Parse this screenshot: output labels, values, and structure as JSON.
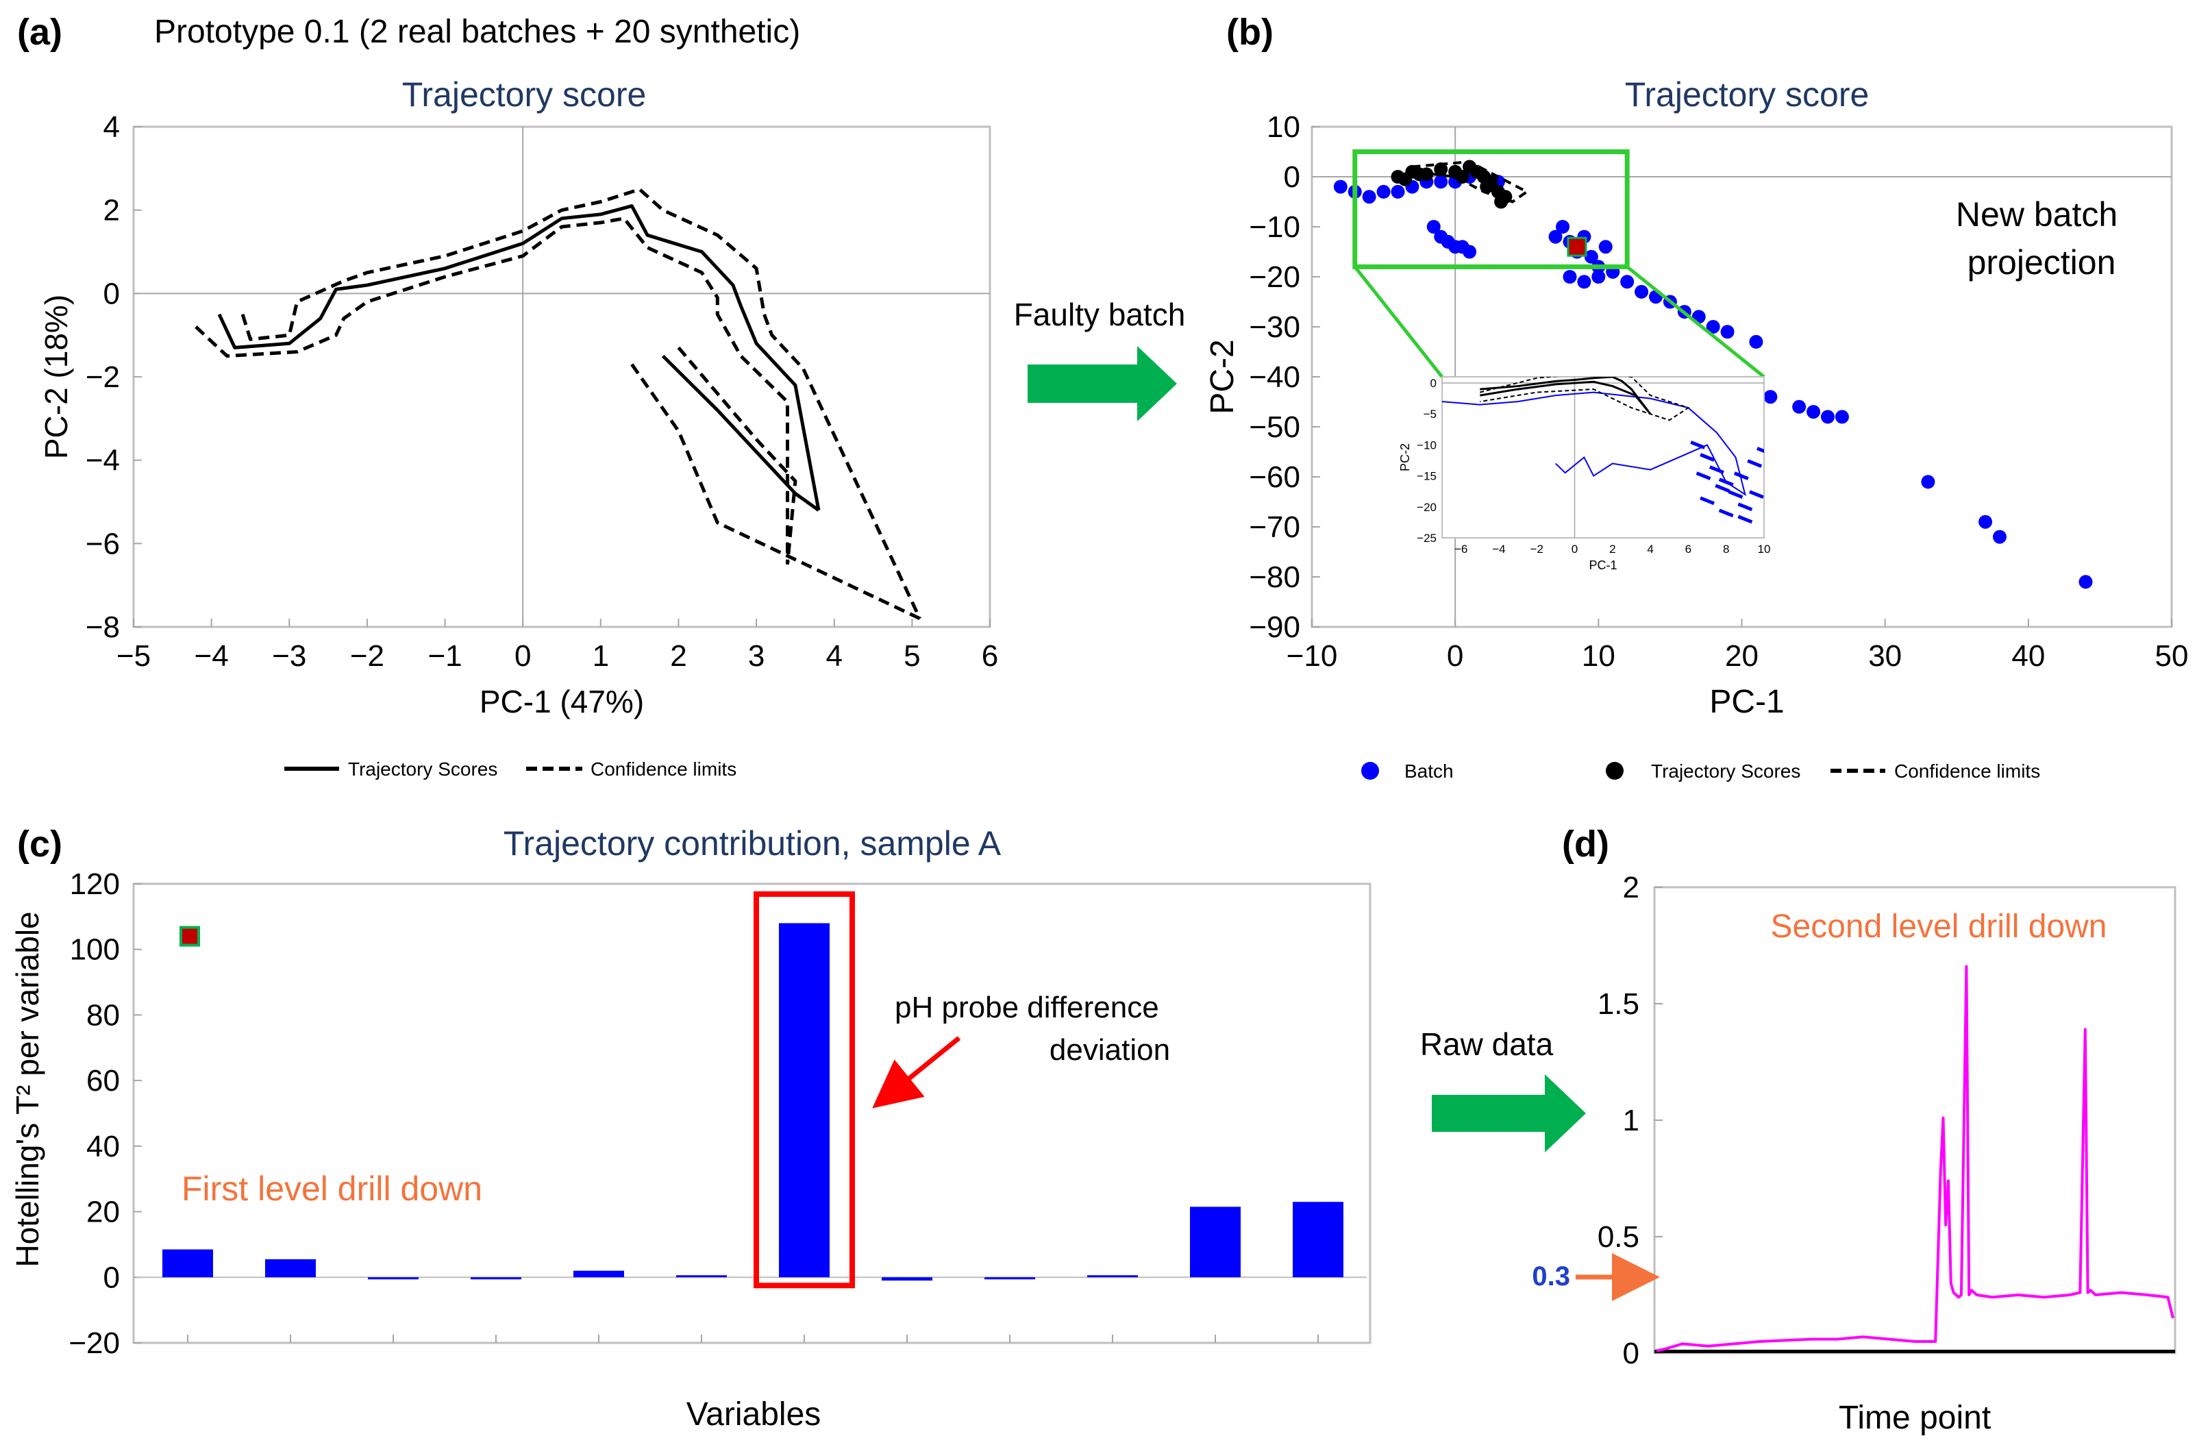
{
  "figure": {
    "panel_letters": [
      "(a)",
      "(b)",
      "(c)",
      "(d)"
    ],
    "prototype_label": "Prototype 0.1 (2 real batches + 20 synthetic)",
    "arrows": {
      "a_to_b": "Faulty batch",
      "c_to_d": "Raw data"
    },
    "legends": {
      "a": [
        {
          "label": "Trajectory Scores",
          "style": "solid"
        },
        {
          "label": "Confidence limits",
          "style": "dashed"
        }
      ],
      "b": [
        {
          "label": "Batch",
          "style": "dot-blue"
        },
        {
          "label": "Trajectory Scores",
          "style": "dot-black"
        },
        {
          "label": "Confidence limits",
          "style": "dashed"
        }
      ]
    },
    "colors": {
      "title": "#1f3864",
      "batch_blue": "#0000ff",
      "green_arrow": "#00b050",
      "box_green": "#33cc33",
      "highlight_red": "#ff0000",
      "annotation_orange": "#f4733c",
      "raw_magenta": "#ff00ff",
      "marker_red": "#c00000"
    }
  },
  "chart_data": [
    {
      "panel": "(a)",
      "type": "line",
      "title": "Trajectory score",
      "xlabel": "PC-1 (47%)",
      "ylabel": "PC-2 (18%)",
      "xlim": [
        -5,
        6
      ],
      "ylim": [
        -8,
        4
      ],
      "xticks": [
        -5,
        -4,
        -3,
        -2,
        -1,
        0,
        1,
        2,
        3,
        4,
        5,
        6
      ],
      "yticks": [
        -8,
        -6,
        -4,
        -2,
        0,
        2,
        4
      ],
      "grid": false,
      "series": [
        {
          "name": "Trajectory Scores",
          "style": "solid",
          "points": [
            [
              -3.9,
              -0.5
            ],
            [
              -3.7,
              -1.3
            ],
            [
              -3.0,
              -1.2
            ],
            [
              -2.6,
              -0.6
            ],
            [
              -2.4,
              0.1
            ],
            [
              -2.0,
              0.2
            ],
            [
              -1.0,
              0.6
            ],
            [
              0.0,
              1.2
            ],
            [
              0.5,
              1.8
            ],
            [
              1.0,
              1.9
            ],
            [
              1.4,
              2.1
            ],
            [
              1.6,
              1.4
            ],
            [
              2.3,
              1.0
            ],
            [
              2.7,
              0.2
            ],
            [
              2.8,
              -0.3
            ],
            [
              3.0,
              -1.2
            ],
            [
              3.5,
              -2.2
            ],
            [
              3.8,
              -5.2
            ]
          ]
        },
        {
          "name": "Trajectory Scores",
          "style": "solid",
          "points": [
            [
              1.8,
              -1.5
            ],
            [
              2.5,
              -2.8
            ],
            [
              3.5,
              -4.8
            ],
            [
              3.8,
              -5.2
            ]
          ]
        },
        {
          "name": "Confidence limits",
          "style": "dashed",
          "points": [
            [
              -4.2,
              -0.8
            ],
            [
              -3.8,
              -1.5
            ],
            [
              -2.9,
              -1.4
            ],
            [
              -2.4,
              -1.0
            ],
            [
              -2.3,
              -0.6
            ],
            [
              -2.0,
              -0.2
            ],
            [
              -1.0,
              0.4
            ],
            [
              0.0,
              0.9
            ],
            [
              0.5,
              1.6
            ],
            [
              1.0,
              1.7
            ],
            [
              1.3,
              1.8
            ],
            [
              1.6,
              1.1
            ],
            [
              2.3,
              0.5
            ],
            [
              2.5,
              -0.1
            ],
            [
              2.5,
              -0.5
            ],
            [
              2.8,
              -1.5
            ],
            [
              3.4,
              -2.6
            ],
            [
              3.4,
              -6.5
            ]
          ]
        },
        {
          "name": "Confidence limits",
          "style": "dashed",
          "points": [
            [
              -3.6,
              -0.5
            ],
            [
              -3.5,
              -1.1
            ],
            [
              -3.0,
              -1.0
            ],
            [
              -2.9,
              -0.2
            ],
            [
              -2.3,
              0.3
            ],
            [
              -2.0,
              0.5
            ],
            [
              -1.0,
              0.9
            ],
            [
              0.0,
              1.5
            ],
            [
              0.5,
              2.0
            ],
            [
              1.0,
              2.2
            ],
            [
              1.5,
              2.5
            ],
            [
              1.8,
              2.0
            ],
            [
              2.5,
              1.4
            ],
            [
              3.0,
              0.6
            ],
            [
              3.1,
              -0.5
            ],
            [
              3.2,
              -1.0
            ],
            [
              3.6,
              -1.8
            ],
            [
              5.1,
              -7.8
            ]
          ]
        },
        {
          "name": "Confidence limits",
          "style": "dashed",
          "points": [
            [
              1.4,
              -1.7
            ],
            [
              2.0,
              -3.3
            ],
            [
              2.5,
              -5.5
            ],
            [
              5.1,
              -7.8
            ]
          ]
        },
        {
          "name": "Confidence limits",
          "style": "dashed",
          "points": [
            [
              2.0,
              -1.3
            ],
            [
              3.0,
              -3.5
            ],
            [
              3.5,
              -4.5
            ],
            [
              3.4,
              -6.5
            ]
          ]
        }
      ]
    },
    {
      "panel": "(b)",
      "type": "scatter",
      "title": "Trajectory score",
      "xlabel": "PC-1",
      "ylabel": "PC-2",
      "xlim": [
        -10,
        50
      ],
      "ylim": [
        -90,
        10
      ],
      "xticks": [
        -10,
        0,
        10,
        20,
        30,
        40,
        50
      ],
      "yticks": [
        -90,
        -80,
        -70,
        -60,
        -50,
        -40,
        -30,
        -20,
        -10,
        0,
        10
      ],
      "grid": false,
      "annotation": "New batch projection",
      "series": [
        {
          "name": "Batch",
          "color": "#0000ff",
          "x": [
            -8,
            -7,
            -6,
            -5,
            -4,
            -3,
            -2,
            -1,
            0,
            1,
            2,
            3,
            -1.5,
            -1,
            -0.5,
            0,
            0.5,
            1,
            7,
            7.5,
            8,
            8.5,
            9,
            9.5,
            10,
            10.5,
            11,
            8,
            9,
            10,
            11,
            12,
            13,
            14,
            15,
            16,
            17,
            18,
            19,
            21,
            22,
            24,
            25,
            26,
            27,
            33,
            37,
            38,
            44
          ],
          "y": [
            -2,
            -3,
            -4,
            -3,
            -3,
            -2,
            -1,
            -1,
            -1,
            0,
            0,
            -1,
            -10,
            -12,
            -13,
            -14,
            -14,
            -15,
            -12,
            -10,
            -13,
            -15,
            -12,
            -16,
            -18,
            -14,
            -19,
            -20,
            -21,
            -20,
            -19,
            -21,
            -23,
            -24,
            -25,
            -27,
            -28,
            -30,
            -31,
            -33,
            -44,
            -46,
            -47,
            -48,
            -48,
            -61,
            -69,
            -72,
            -81
          ]
        },
        {
          "name": "Trajectory Scores",
          "color": "#000000",
          "x": [
            -4,
            -3,
            -2,
            -1,
            0,
            1,
            1.5,
            2,
            2.5,
            3,
            3.5,
            -3.5,
            -2.5,
            0.5,
            2.2,
            3.2
          ],
          "y": [
            0,
            1,
            0.5,
            1.5,
            1,
            2,
            1,
            0,
            -1,
            -3,
            -4,
            -0.5,
            0.5,
            0,
            -2,
            -5
          ]
        }
      ],
      "zoom_box": {
        "x": [
          -7,
          12
        ],
        "y": [
          -18,
          5
        ]
      },
      "new_sample_marker": [
        8.5,
        -14
      ],
      "inset": {
        "xlabel": "PC-1",
        "ylabel": "PC-2",
        "xlim": [
          -7,
          10
        ],
        "ylim": [
          -25,
          1
        ],
        "xticks": [
          -6,
          -4,
          -2,
          0,
          2,
          4,
          6,
          8,
          10
        ],
        "yticks": [
          -25,
          -20,
          -15,
          -10,
          -5,
          0
        ]
      }
    },
    {
      "panel": "(c)",
      "type": "bar",
      "title": "Trajectory contribution, sample A",
      "xlabel": "Variables",
      "ylabel": "Hotelling's T² per variable",
      "ylim": [
        -20,
        120
      ],
      "yticks": [
        -20,
        0,
        20,
        40,
        60,
        80,
        100,
        120
      ],
      "values": [
        8.5,
        5.5,
        -0.3,
        -0.3,
        2.0,
        0.3,
        108,
        -1.0,
        -0.2,
        0,
        21.5,
        23
      ],
      "highlight_index": 6,
      "annotations": {
        "probe": "pH probe difference deviation",
        "level1": "First level drill down"
      },
      "marker_value": 104
    },
    {
      "panel": "(d)",
      "type": "line",
      "xlabel": "Time point",
      "ylabel": "",
      "ylim": [
        0,
        2
      ],
      "yticks": [
        0,
        0.5,
        1,
        1.5,
        2
      ],
      "ytick_labels": [
        "0",
        "0.5",
        "1",
        "1.5",
        "2"
      ],
      "threshold_label": "0.3",
      "threshold_value": 0.3,
      "annotation": "Second level drill down",
      "x": [
        0,
        0.02,
        0.05,
        0.1,
        0.2,
        0.3,
        0.35,
        0.4,
        0.5,
        0.54,
        0.55,
        0.555,
        0.56,
        0.565,
        0.57,
        0.575,
        0.58,
        0.585,
        0.59,
        0.6,
        0.605,
        0.61,
        0.615,
        0.62,
        0.65,
        0.7,
        0.75,
        0.8,
        0.82,
        0.83,
        0.835,
        0.84,
        0.85,
        0.9,
        0.95,
        0.99,
        1.0
      ],
      "y": [
        0.01,
        0.02,
        0.04,
        0.03,
        0.05,
        0.06,
        0.06,
        0.07,
        0.05,
        0.05,
        0.78,
        1.01,
        0.55,
        0.74,
        0.3,
        0.26,
        0.25,
        0.24,
        0.25,
        1.66,
        0.25,
        0.27,
        0.26,
        0.25,
        0.24,
        0.25,
        0.24,
        0.25,
        0.26,
        1.39,
        0.26,
        0.27,
        0.25,
        0.26,
        0.25,
        0.24,
        0.15
      ]
    }
  ]
}
